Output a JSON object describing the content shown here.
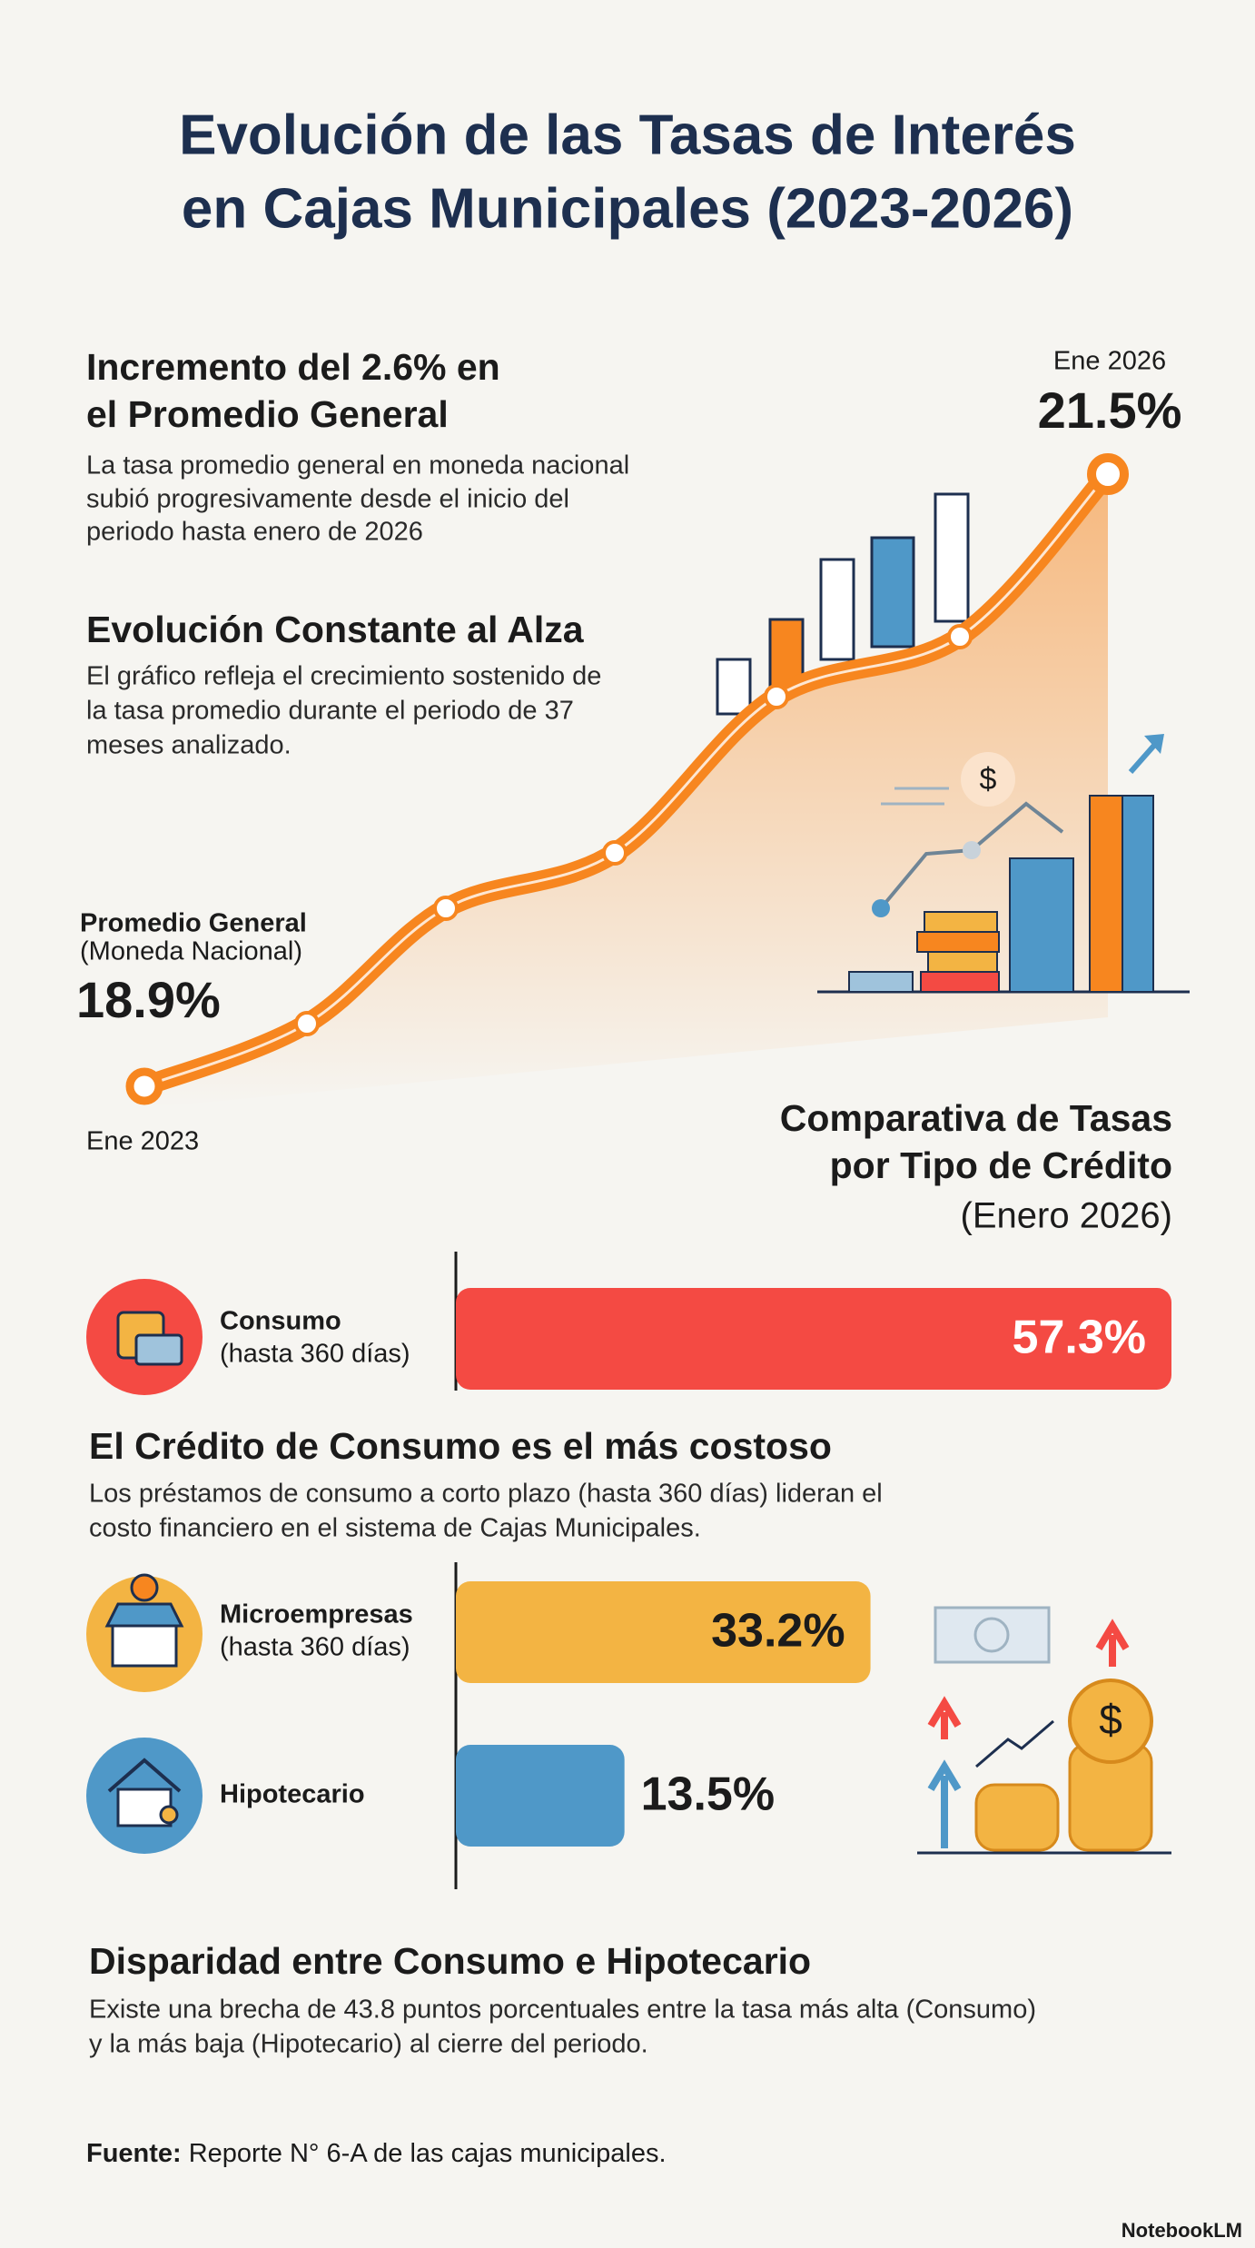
{
  "header": {
    "title_lines": [
      "Evolución de las Tasas de Interés",
      "en Cajas Municipales (2023-2026)"
    ]
  },
  "trend": {
    "sections": [
      {
        "heading_lines": [
          "Incremento del 2.6% en",
          "el Promedio General"
        ],
        "body_lines": [
          "La tasa promedio general en moneda nacional",
          "subió progresivamente desde el inicio del",
          "periodo hasta enero de 2026"
        ]
      },
      {
        "heading_lines": [
          "Evolución Constante al Alza"
        ],
        "body_lines": [
          "El gráfico refleja el crecimiento sostenido de",
          "la tasa promedio durante el periodo de 37",
          "meses analizado."
        ]
      }
    ],
    "series_label": "Promedio General",
    "series_sublabel": "(Moneda Nacional)",
    "start": {
      "label": "Ene 2023",
      "value": 18.9,
      "value_label": "18.9%"
    },
    "end": {
      "label": "Ene 2026",
      "value": 21.5,
      "value_label": "21.5%"
    },
    "color": "#f7861f"
  },
  "comparison": {
    "title_lines": [
      "Comparativa de Tasas",
      "por Tipo de Crédito"
    ],
    "subtitle": "(Enero 2026)",
    "bars": [
      {
        "label_lines": [
          "Consumo",
          "(hasta 360 días)"
        ],
        "value": 57.3,
        "value_label": "57.3%",
        "color": "#f44a43",
        "label_color": "#ffffff"
      },
      {
        "label_lines": [
          "Microempresas",
          "(hasta 360 días)"
        ],
        "value": 33.2,
        "value_label": "33.2%",
        "color": "#f3b443",
        "label_color": "#1b1b1b"
      },
      {
        "label_lines": [
          "Hipotecario"
        ],
        "value": 13.5,
        "value_label": "13.5%",
        "color": "#4f98c8",
        "label_color": "#1b1b1b"
      }
    ]
  },
  "notes": [
    {
      "heading": "El Crédito de Consumo es el más costoso",
      "body_lines": [
        "Los préstamos de consumo a corto plazo (hasta 360 días) lideran el",
        "costo financiero en el sistema de Cajas Municipales."
      ]
    },
    {
      "heading": "Disparidad entre Consumo e Hipotecario",
      "body_lines": [
        "Existe una brecha de 43.8 puntos porcentuales entre la tasa más alta (Consumo)",
        "y la más baja (Hipotecario) al cierre del periodo."
      ]
    }
  ],
  "footer": {
    "source_label": "Fuente:",
    "source_text": "Reporte N° 6-A de las cajas municipales.",
    "brand": "NotebookLM"
  }
}
